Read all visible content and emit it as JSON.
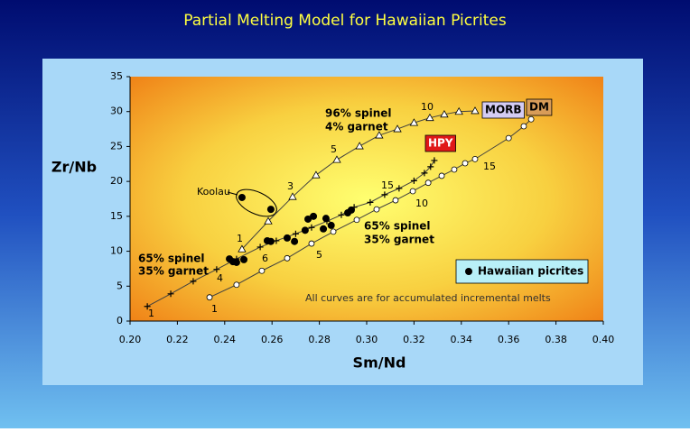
{
  "chart_data": {
    "type": "scatter",
    "title": "Partial Melting Model for Hawaiian Picrites",
    "x_label": "Sm/Nd",
    "y_label": "Zr/Nb",
    "xlim": [
      0.2,
      0.4
    ],
    "ylim": [
      0,
      35
    ],
    "xticks": [
      {
        "value": 0.2,
        "label": "0.20"
      },
      {
        "value": 0.22,
        "label": "0.22"
      },
      {
        "value": 0.24,
        "label": "0.24"
      },
      {
        "value": 0.26,
        "label": "0.26"
      },
      {
        "value": 0.28,
        "label": "0.28"
      },
      {
        "value": 0.3,
        "label": "0.30"
      },
      {
        "value": 0.32,
        "label": "0.32"
      },
      {
        "value": 0.34,
        "label": "0.34"
      },
      {
        "value": 0.36,
        "label": "0.36"
      },
      {
        "value": 0.38,
        "label": "0.38"
      },
      {
        "value": 0.4,
        "label": "0.40"
      }
    ],
    "yticks": [
      0,
      5,
      10,
      15,
      20,
      25,
      30,
      35
    ],
    "legend_position": "lower right",
    "series": [
      {
        "marker": "triangle",
        "color": "#ffffff",
        "line_color": "#404040",
        "x": [
          0.2473,
          0.2584,
          0.2687,
          0.2786,
          0.2874,
          0.297,
          0.3053,
          0.313,
          0.32,
          0.3267,
          0.3328,
          0.339,
          0.3458
        ],
        "values": [
          10.3,
          14.3,
          17.8,
          20.9,
          23.1,
          25.05,
          26.6,
          27.5,
          28.4,
          29.1,
          29.6,
          30.0,
          30.1
        ]
      },
      {
        "marker": "plus",
        "color": "#000000",
        "line_color": "#404040",
        "x": [
          0.2073,
          0.2172,
          0.2267,
          0.2366,
          0.245,
          0.255,
          0.2618,
          0.27,
          0.2767,
          0.2832,
          0.2893,
          0.2947,
          0.3015,
          0.3076,
          0.3137,
          0.32,
          0.3244,
          0.327,
          0.3286
        ],
        "values": [
          2.1,
          3.9,
          5.7,
          7.4,
          8.9,
          10.6,
          11.5,
          12.5,
          13.4,
          14.3,
          15.2,
          16.3,
          17.0,
          18.1,
          19.0,
          20.1,
          21.2,
          22.1,
          23.0
        ]
      },
      {
        "marker": "circle",
        "color": "#ffffff",
        "line_color": "#404040",
        "x": [
          0.2336,
          0.245,
          0.2557,
          0.2664,
          0.2767,
          0.2859,
          0.2958,
          0.3042,
          0.3122,
          0.3195,
          0.326,
          0.3317,
          0.337,
          0.3416,
          0.3458,
          0.36,
          0.3664,
          0.3695
        ],
        "values": [
          3.4,
          5.2,
          7.2,
          9.0,
          11.1,
          12.8,
          14.5,
          16.0,
          17.3,
          18.6,
          19.8,
          20.8,
          21.7,
          22.6,
          23.2,
          26.2,
          27.9,
          28.9
        ]
      },
      {
        "name": "Hawaiian picrites",
        "marker": "dot",
        "color": "#000000",
        "x": [
          0.2473,
          0.2595,
          0.242,
          0.2435,
          0.245,
          0.2481,
          0.258,
          0.2595,
          0.2664,
          0.2695,
          0.274,
          0.2752,
          0.2775,
          0.2817,
          0.2828,
          0.285,
          0.292,
          0.2935
        ],
        "values": [
          17.7,
          16.0,
          8.9,
          8.5,
          8.4,
          8.8,
          11.5,
          11.4,
          11.9,
          11.4,
          13.0,
          14.6,
          15.0,
          13.2,
          14.7,
          13.7,
          15.5,
          15.9
        ]
      }
    ],
    "annotations": [
      "96% spinel",
      "4% garnet",
      "65% spinel",
      "35% garnet",
      "65% spinel",
      "35% garnet",
      "Koolau",
      "10",
      "5",
      "3",
      "1",
      "1",
      "4",
      "6",
      "15",
      "1",
      "5",
      "10",
      "15",
      "MORB",
      "DM",
      "HPY",
      "All curves are for accumulated incremental melts"
    ]
  }
}
